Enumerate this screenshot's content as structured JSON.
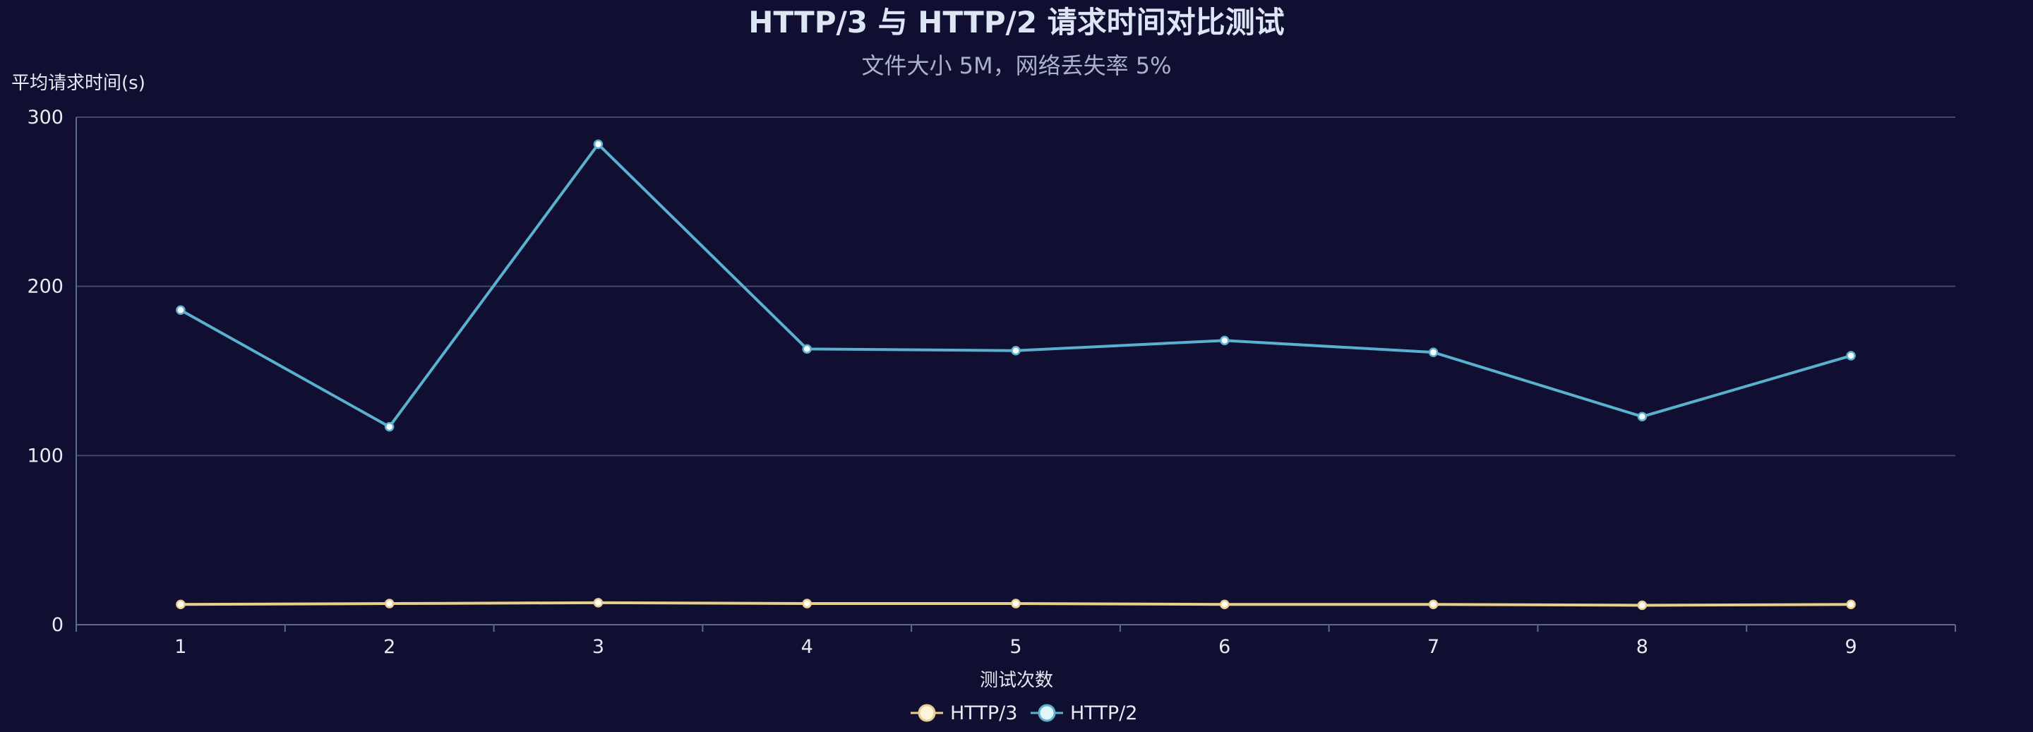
{
  "colors": {
    "background": "#100f31",
    "grid": "#3c4a6b",
    "axis": "#5a6c8c",
    "http3": "#e9cf8b",
    "http2": "#5ab1cf"
  },
  "chart_data": {
    "type": "line",
    "title": "HTTP/3 与 HTTP/2 请求时间对比测试",
    "subtitle": "文件大小 5M，网络丢失率 5%",
    "xlabel": "测试次数",
    "ylabel": "平均请求时间(s)",
    "categories": [
      "1",
      "2",
      "3",
      "4",
      "5",
      "6",
      "7",
      "8",
      "9"
    ],
    "ylim": [
      0,
      300
    ],
    "yticks": [
      0,
      100,
      200,
      300
    ],
    "grid": true,
    "legend_position": "bottom-center",
    "series": [
      {
        "name": "HTTP/3",
        "color": "#e9cf8b",
        "values": [
          12,
          12.5,
          13,
          12.5,
          12.5,
          12,
          12,
          11.5,
          12
        ]
      },
      {
        "name": "HTTP/2",
        "color": "#5ab1cf",
        "values": [
          186,
          117,
          284,
          163,
          162,
          168,
          161,
          123,
          159
        ]
      }
    ]
  }
}
